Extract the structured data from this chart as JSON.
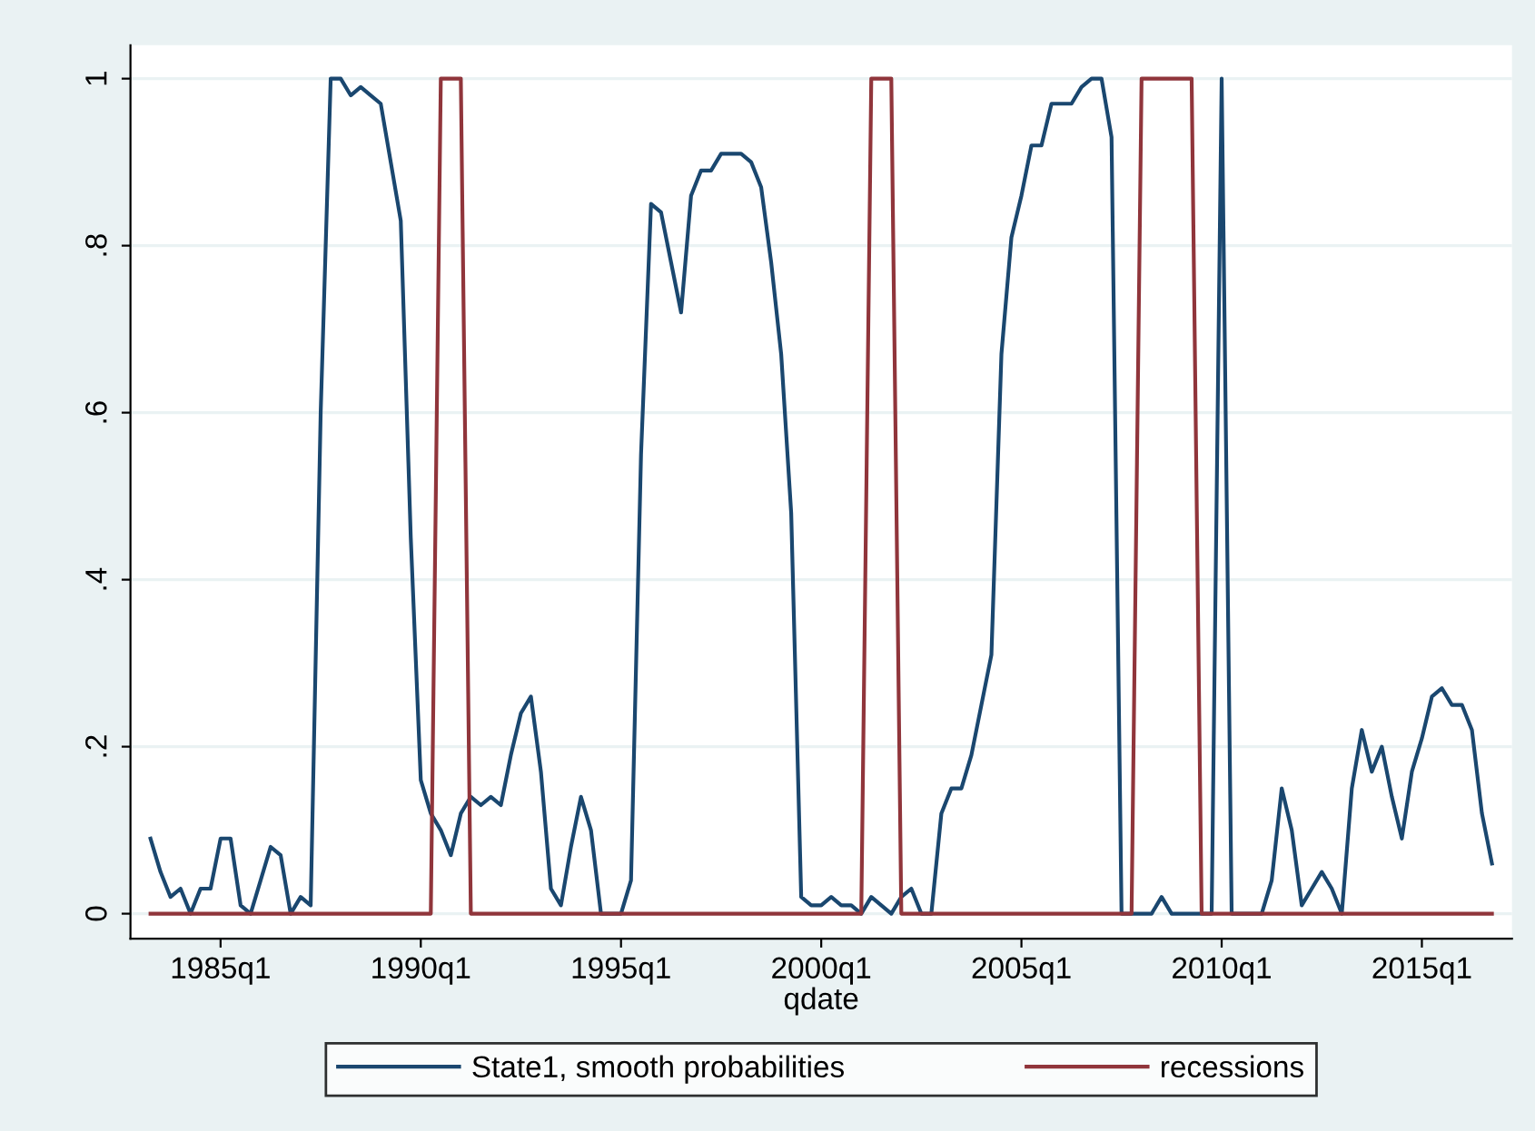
{
  "chart_data": {
    "type": "line",
    "xlabel": "qdate",
    "categories": [
      null,
      null,
      null,
      null,
      null,
      null,
      null,
      "1985q1",
      null,
      null,
      null,
      null,
      null,
      null,
      null,
      null,
      null,
      null,
      null,
      null,
      null,
      null,
      null,
      null,
      null,
      null,
      null,
      "1990q1",
      null,
      null,
      null,
      null,
      null,
      null,
      null,
      null,
      null,
      null,
      null,
      null,
      null,
      null,
      null,
      null,
      null,
      null,
      null,
      "1995q1",
      null,
      null,
      null,
      null,
      null,
      null,
      null,
      null,
      null,
      null,
      null,
      null,
      null,
      null,
      null,
      null,
      null,
      null,
      null,
      "2000q1",
      null,
      null,
      null,
      null,
      null,
      null,
      null,
      null,
      null,
      null,
      null,
      null,
      null,
      null,
      null,
      null,
      null,
      null,
      null,
      "2005q1",
      null,
      null,
      null,
      null,
      null,
      null,
      null,
      null,
      null,
      null,
      null,
      null,
      null,
      null,
      null,
      null,
      null,
      null,
      null,
      "2010q1",
      null,
      null,
      null,
      null,
      null,
      null,
      null,
      null,
      null,
      null,
      null,
      null,
      null,
      null,
      null,
      null,
      null,
      null,
      null,
      "2015q1",
      null,
      null,
      null,
      null,
      null,
      null,
      null
    ],
    "ylim": [
      -0.03,
      1.04
    ],
    "yticks": [
      0,
      {
        "value": 0.2,
        "label": ".2"
      },
      {
        "value": 0.4,
        "label": ".4"
      },
      {
        "value": 0.6,
        "label": ".6"
      },
      {
        "value": 0.8,
        "label": ".8"
      },
      1
    ],
    "grid": "y",
    "legend": "bottom",
    "marker": "none",
    "line_style": "solid",
    "series": [
      {
        "name": "State1, smooth probabilities",
        "color": "#1a476f",
        "values": [
          0.09,
          0.05,
          0.02,
          0.03,
          0.0,
          0.03,
          0.03,
          0.09,
          0.09,
          0.01,
          0.0,
          0.04,
          0.08,
          0.07,
          0.0,
          0.02,
          0.01,
          0.6,
          1.0,
          1.0,
          0.98,
          0.99,
          0.98,
          0.97,
          0.9,
          0.83,
          0.45,
          0.16,
          0.12,
          0.1,
          0.07,
          0.12,
          0.14,
          0.13,
          0.14,
          0.13,
          0.19,
          0.24,
          0.26,
          0.17,
          0.03,
          0.01,
          0.08,
          0.14,
          0.1,
          0.0,
          0.0,
          0.0,
          0.04,
          0.55,
          0.85,
          0.84,
          0.78,
          0.72,
          0.86,
          0.89,
          0.89,
          0.91,
          0.91,
          0.91,
          0.9,
          0.87,
          0.78,
          0.67,
          0.48,
          0.02,
          0.01,
          0.01,
          0.02,
          0.01,
          0.01,
          0.0,
          0.02,
          0.01,
          0.0,
          0.02,
          0.03,
          0.0,
          0.0,
          0.12,
          0.15,
          0.15,
          0.19,
          0.25,
          0.31,
          0.67,
          0.81,
          0.86,
          0.92,
          0.92,
          0.97,
          0.97,
          0.97,
          0.99,
          1.0,
          1.0,
          0.93,
          0.0,
          0.0,
          0.0,
          0.0,
          0.02,
          0.0,
          0.0,
          0.0,
          0.0,
          0.0,
          1.0,
          0.0,
          0.0,
          0.0,
          0.0,
          0.04,
          0.15,
          0.1,
          0.01,
          0.03,
          0.05,
          0.03,
          0.0,
          0.15,
          0.22,
          0.17,
          0.2,
          0.14,
          0.09,
          0.17,
          0.21,
          0.26,
          0.27,
          0.25,
          0.25,
          0.22,
          0.12,
          0.06
        ]
      },
      {
        "name": "recessions",
        "color": "#90353b",
        "values": [
          0,
          0,
          0,
          0,
          0,
          0,
          0,
          0,
          0,
          0,
          0,
          0,
          0,
          0,
          0,
          0,
          0,
          0,
          0,
          0,
          0,
          0,
          0,
          0,
          0,
          0,
          0,
          0,
          0,
          1,
          1,
          1,
          0,
          0,
          0,
          0,
          0,
          0,
          0,
          0,
          0,
          0,
          0,
          0,
          0,
          0,
          0,
          0,
          0,
          0,
          0,
          0,
          0,
          0,
          0,
          0,
          0,
          0,
          0,
          0,
          0,
          0,
          0,
          0,
          0,
          0,
          0,
          0,
          0,
          0,
          0,
          0,
          1,
          1,
          1,
          0,
          0,
          0,
          0,
          0,
          0,
          0,
          0,
          0,
          0,
          0,
          0,
          0,
          0,
          0,
          0,
          0,
          0,
          0,
          0,
          0,
          0,
          0,
          0,
          1,
          1,
          1,
          1,
          1,
          1,
          0,
          0,
          0,
          0,
          0,
          0,
          0,
          0,
          0,
          0,
          0,
          0,
          0,
          0,
          0,
          0,
          0,
          0,
          0,
          0,
          0,
          0,
          0,
          0,
          0,
          0,
          0,
          0,
          0,
          0
        ]
      }
    ]
  }
}
